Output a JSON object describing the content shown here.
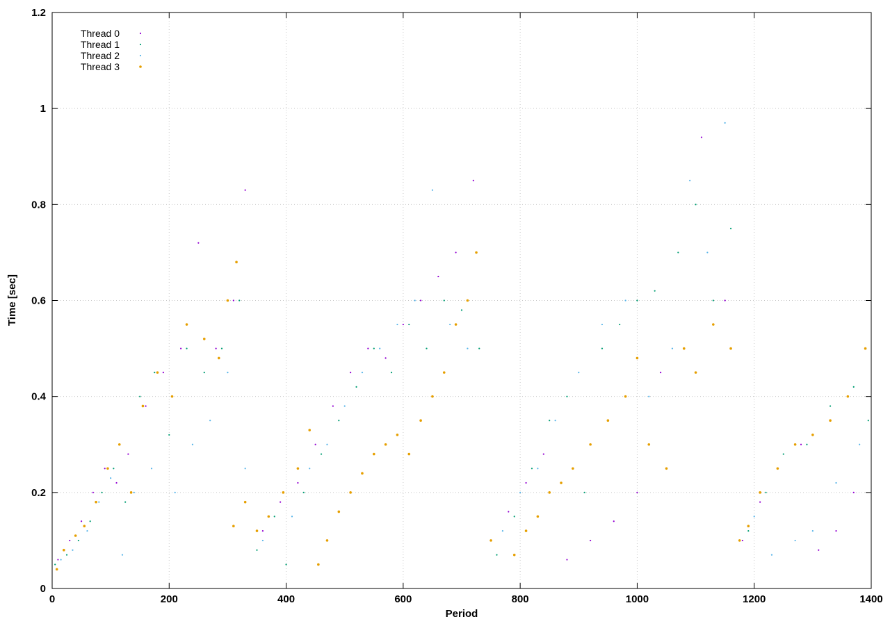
{
  "chart_data": {
    "type": "scatter",
    "x_label": "Period",
    "y_label": "Time [sec]",
    "xlim": [
      0,
      1400
    ],
    "ylim": [
      0,
      1.2
    ],
    "xticks": [
      0,
      200,
      400,
      600,
      800,
      1000,
      1200,
      1400
    ],
    "yticks": [
      0,
      0.2,
      0.4,
      0.6,
      0.8,
      1,
      1.2
    ],
    "grid": true,
    "legend": "top-left",
    "series": [
      {
        "name": "Thread 0",
        "color": "#9400d3",
        "marker_size": 1.1,
        "x": [
          10,
          30,
          50,
          70,
          90,
          110,
          130,
          160,
          190,
          220,
          250,
          280,
          310,
          330,
          360,
          390,
          420,
          450,
          480,
          510,
          540,
          570,
          600,
          630,
          660,
          690,
          720,
          750,
          780,
          810,
          840,
          880,
          920,
          960,
          1000,
          1040,
          1080,
          1110,
          1150,
          1180,
          1210,
          1240,
          1280,
          1310,
          1340,
          1370
        ],
        "values": [
          0.06,
          0.1,
          0.14,
          0.2,
          0.25,
          0.22,
          0.28,
          0.38,
          0.45,
          0.5,
          0.72,
          0.5,
          0.6,
          0.83,
          0.12,
          0.18,
          0.22,
          0.3,
          0.38,
          0.45,
          0.5,
          0.48,
          0.55,
          0.6,
          0.65,
          0.7,
          0.85,
          0.1,
          0.16,
          0.22,
          0.28,
          0.06,
          0.1,
          0.14,
          0.2,
          0.45,
          0.5,
          0.94,
          0.6,
          0.1,
          0.18,
          0.25,
          0.3,
          0.08,
          0.12,
          0.2
        ]
      },
      {
        "name": "Thread 1",
        "color": "#009e73",
        "marker_size": 1.1,
        "x": [
          5,
          25,
          45,
          65,
          85,
          105,
          125,
          150,
          175,
          200,
          230,
          260,
          290,
          320,
          350,
          380,
          400,
          430,
          460,
          490,
          520,
          550,
          580,
          610,
          640,
          670,
          700,
          730,
          760,
          790,
          820,
          850,
          880,
          910,
          940,
          970,
          1000,
          1030,
          1070,
          1100,
          1130,
          1160,
          1190,
          1220,
          1250,
          1290,
          1330,
          1370,
          1395
        ],
        "values": [
          0.05,
          0.07,
          0.1,
          0.14,
          0.2,
          0.25,
          0.18,
          0.4,
          0.45,
          0.32,
          0.5,
          0.45,
          0.5,
          0.6,
          0.08,
          0.15,
          0.05,
          0.2,
          0.28,
          0.35,
          0.42,
          0.5,
          0.45,
          0.55,
          0.5,
          0.6,
          0.58,
          0.5,
          0.07,
          0.15,
          0.25,
          0.35,
          0.4,
          0.2,
          0.5,
          0.55,
          0.6,
          0.62,
          0.7,
          0.8,
          0.6,
          0.75,
          0.12,
          0.2,
          0.28,
          0.3,
          0.38,
          0.42,
          0.35
        ]
      },
      {
        "name": "Thread 2",
        "color": "#56b4e9",
        "marker_size": 1.1,
        "x": [
          15,
          35,
          60,
          80,
          100,
          120,
          140,
          170,
          210,
          240,
          270,
          300,
          330,
          360,
          410,
          440,
          470,
          500,
          530,
          560,
          590,
          620,
          650,
          680,
          710,
          770,
          800,
          830,
          860,
          900,
          940,
          980,
          1020,
          1060,
          1090,
          1120,
          1150,
          1200,
          1230,
          1270,
          1300,
          1340,
          1380
        ],
        "values": [
          0.06,
          0.08,
          0.12,
          0.18,
          0.23,
          0.07,
          0.2,
          0.25,
          0.2,
          0.3,
          0.35,
          0.45,
          0.25,
          0.1,
          0.15,
          0.25,
          0.3,
          0.38,
          0.45,
          0.5,
          0.55,
          0.6,
          0.83,
          0.55,
          0.5,
          0.12,
          0.2,
          0.25,
          0.35,
          0.45,
          0.55,
          0.6,
          0.4,
          0.5,
          0.85,
          0.7,
          0.97,
          0.15,
          0.07,
          0.1,
          0.12,
          0.22,
          0.3
        ]
      },
      {
        "name": "Thread 3",
        "color": "#e69f00",
        "marker_size": 1.8,
        "x": [
          8,
          20,
          40,
          55,
          75,
          95,
          115,
          135,
          155,
          180,
          205,
          230,
          260,
          285,
          300,
          315,
          310,
          330,
          350,
          370,
          395,
          420,
          440,
          455,
          470,
          490,
          510,
          530,
          550,
          570,
          590,
          610,
          630,
          650,
          670,
          690,
          710,
          725,
          750,
          790,
          810,
          830,
          850,
          870,
          890,
          920,
          950,
          980,
          1000,
          1020,
          1050,
          1080,
          1100,
          1130,
          1160,
          1175,
          1190,
          1210,
          1240,
          1270,
          1300,
          1330,
          1360,
          1390
        ],
        "values": [
          0.04,
          0.08,
          0.11,
          0.13,
          0.18,
          0.25,
          0.3,
          0.2,
          0.38,
          0.45,
          0.4,
          0.55,
          0.52,
          0.48,
          0.6,
          0.68,
          0.13,
          0.18,
          0.12,
          0.15,
          0.2,
          0.25,
          0.33,
          0.05,
          0.1,
          0.16,
          0.2,
          0.24,
          0.28,
          0.3,
          0.32,
          0.28,
          0.35,
          0.4,
          0.45,
          0.55,
          0.6,
          0.7,
          0.1,
          0.07,
          0.12,
          0.15,
          0.2,
          0.22,
          0.25,
          0.3,
          0.35,
          0.4,
          0.48,
          0.3,
          0.25,
          0.5,
          0.45,
          0.55,
          0.5,
          0.1,
          0.13,
          0.2,
          0.25,
          0.3,
          0.32,
          0.35,
          0.4,
          0.5
        ]
      }
    ]
  }
}
